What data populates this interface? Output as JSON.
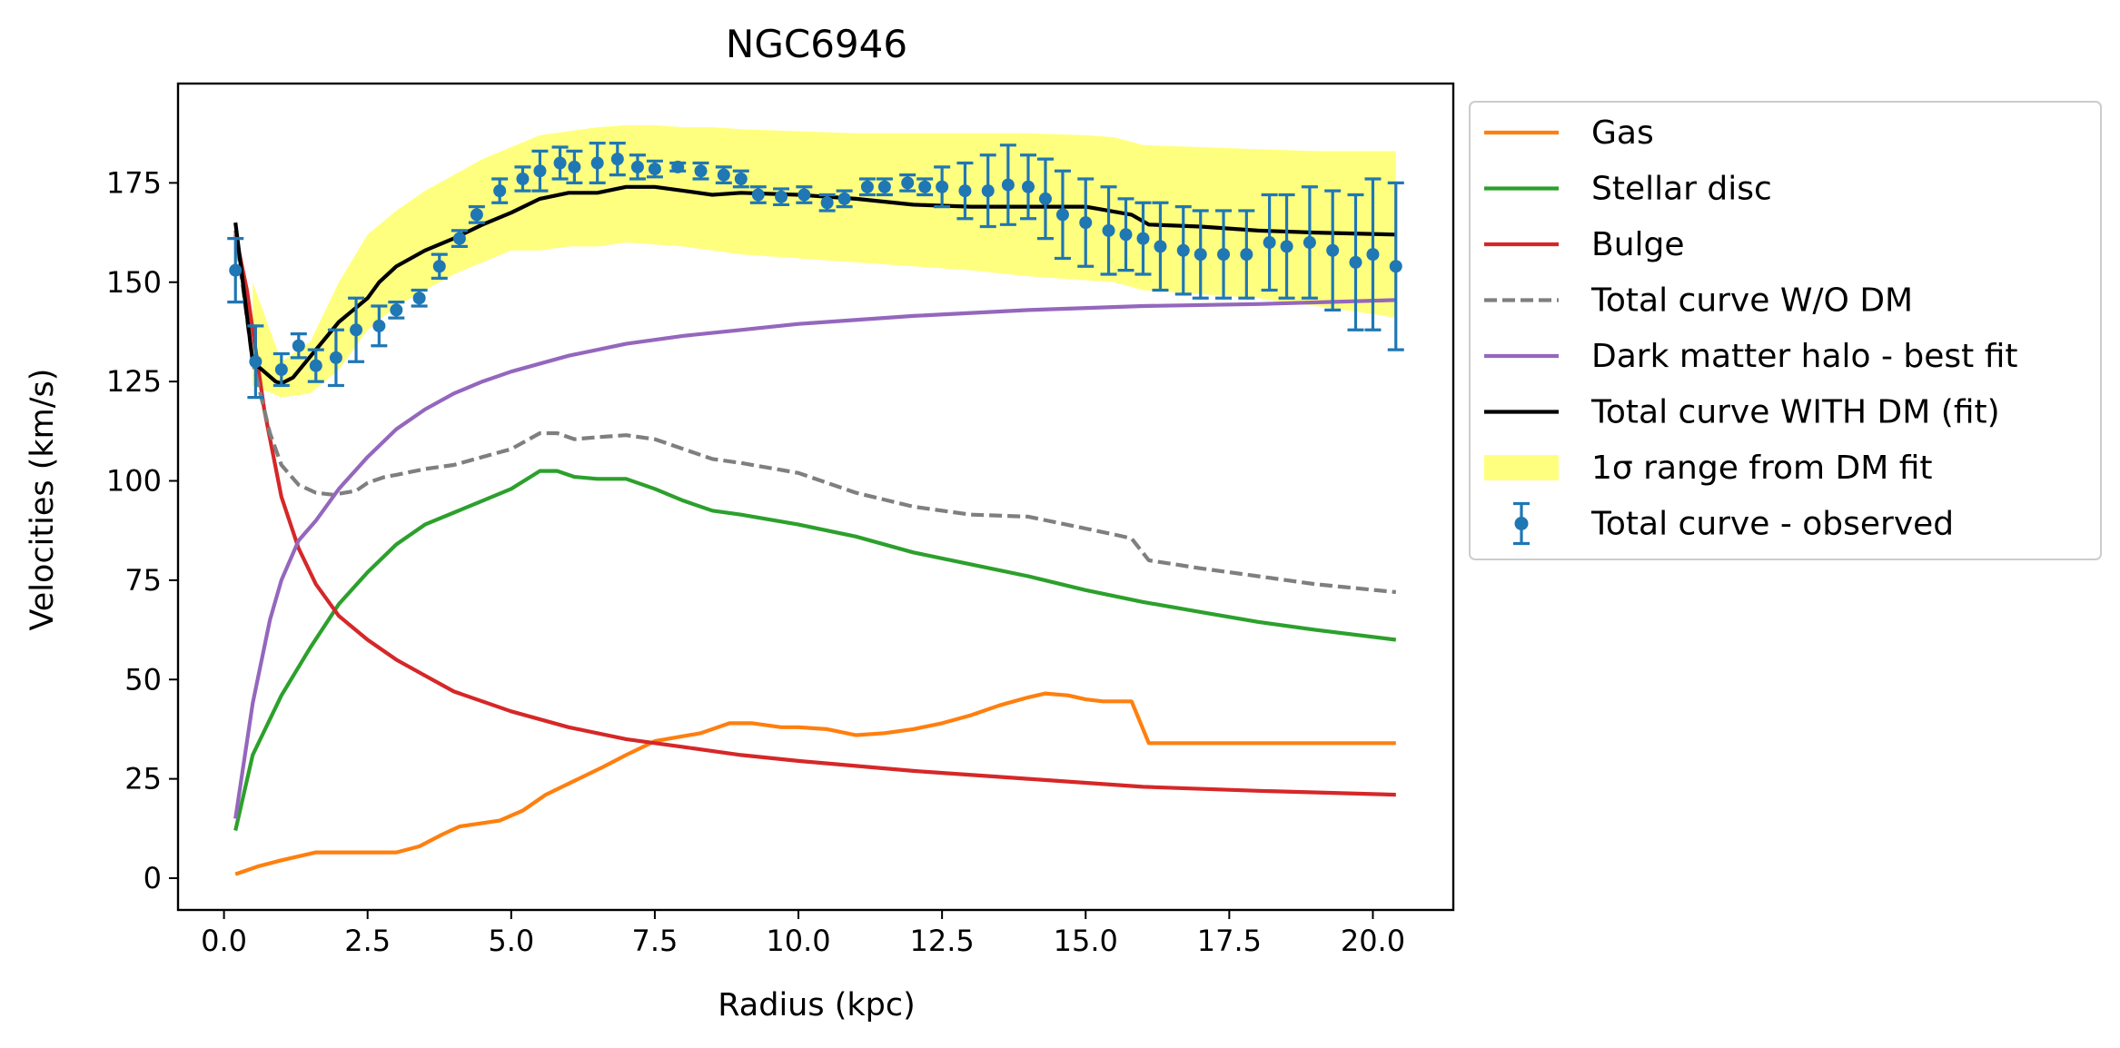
{
  "chart_data": {
    "type": "line",
    "title": "NGC6946",
    "xlabel": "Radius (kpc)",
    "ylabel": "Velocities (km/s)",
    "xlim": [
      -0.8,
      21.4
    ],
    "ylim": [
      -8,
      200
    ],
    "x_ticks": [
      "0.0",
      "2.5",
      "5.0",
      "7.5",
      "10.0",
      "12.5",
      "15.0",
      "17.5",
      "20.0"
    ],
    "x_tick_values": [
      0,
      2.5,
      5,
      7.5,
      10,
      12.5,
      15,
      17.5,
      20
    ],
    "y_ticks": [
      "0",
      "25",
      "50",
      "75",
      "100",
      "125",
      "150",
      "175"
    ],
    "y_tick_values": [
      0,
      25,
      50,
      75,
      100,
      125,
      150,
      175
    ],
    "grid": false,
    "legend_position": "outside-right",
    "band": {
      "name": "1σ range from DM fit",
      "color": "#ffff00",
      "x": [
        0.5,
        1.0,
        1.5,
        2.0,
        2.5,
        3.0,
        3.5,
        4.0,
        4.5,
        5.0,
        5.5,
        6.0,
        6.5,
        7.0,
        7.5,
        8.0,
        8.5,
        9.0,
        10.0,
        11.0,
        12.0,
        13.0,
        14.0,
        15.0,
        15.5,
        16.0,
        17.0,
        18.0,
        19.0,
        20.0,
        20.4
      ],
      "upper": [
        150,
        130,
        135,
        150,
        162,
        168,
        173,
        177,
        181,
        184,
        187,
        188,
        189,
        189.5,
        189.5,
        189,
        189,
        188.5,
        188,
        187.5,
        187.5,
        187.5,
        187.5,
        187,
        186.5,
        184.5,
        184,
        183.5,
        183,
        183,
        183
      ],
      "lower": [
        124,
        121,
        122,
        128,
        138,
        144,
        148,
        152,
        155,
        158,
        158,
        159,
        159,
        160,
        159.5,
        159,
        158,
        157,
        156,
        155,
        154,
        153,
        151.5,
        150.5,
        150,
        148,
        147,
        146,
        144,
        142,
        141
      ]
    },
    "series": [
      {
        "name": "Gas",
        "color": "#ff7f0e",
        "dash": "solid",
        "x": [
          0.2,
          0.6,
          1.0,
          1.6,
          2.0,
          2.7,
          3.0,
          3.4,
          3.8,
          4.1,
          4.8,
          5.2,
          5.6,
          6.1,
          6.6,
          7.0,
          7.5,
          8.3,
          8.8,
          9.2,
          9.7,
          10.0,
          10.5,
          11.0,
          11.5,
          12.0,
          12.5,
          13.0,
          13.5,
          14.0,
          14.3,
          14.7,
          15.0,
          15.3,
          15.5,
          15.8,
          16.1,
          17.0,
          18.0,
          19.0,
          20.4
        ],
        "y": [
          1,
          3,
          4.5,
          6.5,
          6.5,
          6.5,
          6.5,
          8,
          11,
          13,
          14.5,
          17,
          21,
          24.5,
          28,
          31,
          34.5,
          36.5,
          39,
          39,
          38,
          38,
          37.5,
          36,
          36.5,
          37.5,
          39,
          41,
          43.5,
          45.5,
          46.5,
          46,
          45,
          44.5,
          44.5,
          44.5,
          34,
          34,
          34,
          34,
          34
        ]
      },
      {
        "name": "Stellar disc",
        "color": "#2ca02c",
        "dash": "solid",
        "x": [
          0.2,
          0.5,
          1.0,
          1.5,
          2.0,
          2.5,
          3.0,
          3.5,
          4.0,
          4.5,
          5.0,
          5.5,
          5.8,
          6.1,
          6.5,
          7.0,
          7.5,
          8.0,
          8.5,
          9.0,
          10.0,
          11.0,
          12.0,
          13.0,
          14.0,
          15.0,
          16.0,
          17.0,
          18.0,
          19.0,
          20.4
        ],
        "y": [
          12,
          31,
          46,
          58,
          69,
          77,
          84,
          89,
          92,
          95,
          98,
          102.5,
          102.5,
          101,
          100.5,
          100.5,
          98,
          95,
          92.5,
          91.5,
          89,
          86,
          82,
          79,
          76,
          72.5,
          69.5,
          67,
          64.5,
          62.5,
          60
        ]
      },
      {
        "name": "Bulge",
        "color": "#d62728",
        "dash": "solid",
        "x": [
          0.2,
          0.4,
          0.7,
          1.0,
          1.3,
          1.6,
          2.0,
          2.5,
          3.0,
          3.5,
          4.0,
          5.0,
          6.0,
          7.0,
          8.0,
          9.0,
          10.0,
          12.0,
          14.0,
          16.0,
          18.0,
          20.4
        ],
        "y": [
          162,
          148,
          118,
          96,
          83,
          74,
          66,
          60,
          55,
          51,
          47,
          42,
          38,
          35,
          33,
          31,
          29.5,
          27,
          25,
          23,
          22,
          21
        ]
      },
      {
        "name": "Total curve W/O DM",
        "color": "#7f7f7f",
        "dash": "dashed",
        "x": [
          0.2,
          0.5,
          0.8,
          1.0,
          1.3,
          1.6,
          1.9,
          2.3,
          2.5,
          2.8,
          3.0,
          3.5,
          4.0,
          4.5,
          5.0,
          5.5,
          5.8,
          6.1,
          6.5,
          7.0,
          7.5,
          8.0,
          8.5,
          9.0,
          10.0,
          11.0,
          12.0,
          13.0,
          14.0,
          15.0,
          15.5,
          15.8,
          16.1,
          17.0,
          18.0,
          19.0,
          20.4
        ],
        "y": [
          163,
          130,
          112,
          104,
          99,
          97,
          96.5,
          97.5,
          99.5,
          101,
          101.5,
          103,
          104,
          106,
          108,
          112,
          112,
          110.5,
          111,
          111.5,
          110.5,
          108,
          105.5,
          104.5,
          102,
          97,
          93.5,
          91.5,
          91,
          88,
          86.5,
          85.5,
          80,
          78,
          76,
          74,
          72
        ]
      },
      {
        "name": "Dark matter halo - best fit",
        "color": "#9467bd",
        "dash": "solid",
        "x": [
          0.2,
          0.5,
          0.8,
          1.0,
          1.3,
          1.6,
          2.0,
          2.5,
          3.0,
          3.5,
          4.0,
          4.5,
          5.0,
          6.0,
          7.0,
          8.0,
          9.0,
          10.0,
          12.0,
          14.0,
          16.0,
          18.0,
          20.4
        ],
        "y": [
          15,
          44,
          65,
          75,
          85,
          90,
          98,
          106,
          113,
          118,
          122,
          125,
          127.5,
          131.5,
          134.5,
          136.5,
          138,
          139.5,
          141.5,
          143,
          144,
          144.5,
          145.5
        ]
      },
      {
        "name": "Total curve WITH DM (fit)",
        "color": "#000000",
        "dash": "solid",
        "x": [
          0.2,
          0.5,
          0.9,
          1.0,
          1.2,
          1.6,
          2.0,
          2.5,
          2.7,
          3.0,
          3.5,
          4.0,
          4.5,
          5.0,
          5.5,
          6.0,
          6.5,
          7.0,
          7.5,
          8.0,
          8.5,
          9.0,
          10.0,
          11.0,
          12.0,
          13.0,
          14.0,
          15.0,
          15.8,
          16.1,
          17.0,
          18.0,
          19.0,
          20.4
        ],
        "y": [
          165,
          130,
          125,
          124.5,
          126,
          133,
          140,
          146,
          150,
          154,
          158,
          161,
          164.5,
          167.5,
          171,
          172.5,
          172.5,
          174,
          174,
          173,
          172,
          172.5,
          172,
          171,
          169.5,
          169,
          169,
          169,
          167,
          164.5,
          164,
          163,
          162.5,
          162
        ]
      }
    ],
    "observed": {
      "name": "Total curve - observed",
      "color": "#1f77b4",
      "x": [
        0.2,
        0.55,
        1.0,
        1.3,
        1.6,
        1.95,
        2.3,
        2.7,
        3.0,
        3.4,
        3.75,
        4.1,
        4.4,
        4.8,
        5.2,
        5.5,
        5.85,
        6.1,
        6.5,
        6.85,
        7.2,
        7.5,
        7.9,
        8.3,
        8.7,
        9.0,
        9.3,
        9.7,
        10.1,
        10.5,
        10.8,
        11.2,
        11.5,
        11.9,
        12.2,
        12.5,
        12.9,
        13.3,
        13.65,
        14.0,
        14.3,
        14.6,
        15.0,
        15.4,
        15.7,
        16.0,
        16.3,
        16.7,
        17.0,
        17.4,
        17.8,
        18.2,
        18.5,
        18.9,
        19.3,
        19.7,
        20.0,
        20.4
      ],
      "y": [
        153,
        130,
        128,
        134,
        129,
        131,
        138,
        139,
        143,
        146,
        154,
        161,
        167,
        173,
        176,
        178,
        180,
        179,
        180,
        181,
        179,
        178.5,
        179,
        178,
        177,
        176,
        172,
        171.5,
        172,
        170,
        171,
        174,
        174,
        175,
        174,
        174,
        173,
        173,
        174.5,
        174,
        171,
        167,
        165,
        163,
        162,
        161,
        159,
        158,
        157,
        157,
        157,
        160,
        159,
        160,
        158,
        155,
        157,
        154
      ],
      "err": [
        8,
        9,
        4,
        3,
        4,
        7,
        8,
        5,
        2,
        2,
        3,
        2,
        2,
        3,
        3,
        5,
        4,
        4,
        5,
        4,
        3,
        2,
        1,
        2,
        2,
        2,
        2,
        2,
        2,
        2,
        2,
        2,
        2,
        2,
        2,
        5,
        7,
        9,
        10,
        8,
        10,
        11,
        11,
        11,
        9,
        9,
        11,
        11,
        11,
        11,
        11,
        12,
        13,
        14,
        15,
        17,
        19,
        21
      ]
    }
  }
}
